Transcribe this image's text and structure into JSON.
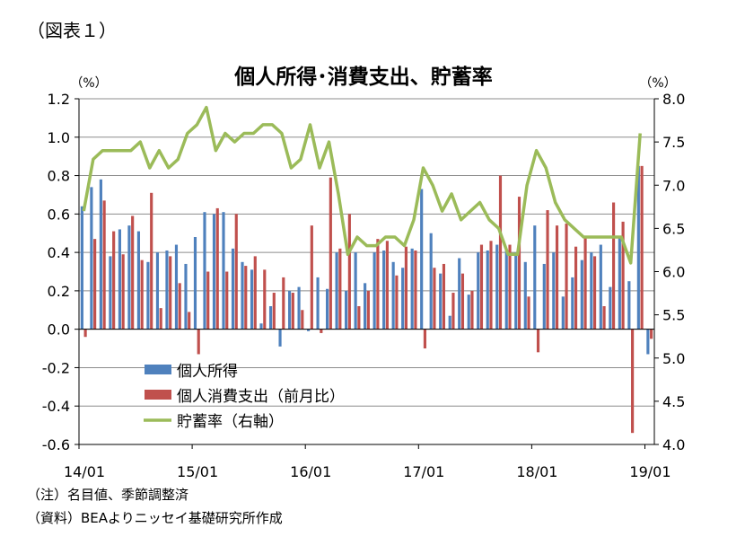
{
  "figure_label": "（図表１）",
  "notes": [
    "（注）名目値、季節調整済",
    "（資料）BEAよりニッセイ基礎研究所作成"
  ],
  "colors": {
    "income": "#4f81bd",
    "consumption": "#c0504d",
    "saving": "#9bbb59",
    "grid": "#8c8c8c"
  },
  "chart_data": {
    "type": "bar",
    "title": "個人所得･消費支出、貯蓄率",
    "y_left_label": "（%）",
    "y_right_label": "（%）",
    "y_left_lim": [
      -0.6,
      1.2
    ],
    "y_left_ticks": [
      "1.2",
      "1.0",
      "0.8",
      "0.6",
      "0.4",
      "0.2",
      "0.0",
      "-0.2",
      "-0.4",
      "-0.6"
    ],
    "y_right_lim": [
      4.0,
      8.0
    ],
    "y_right_ticks": [
      "8.0",
      "7.5",
      "7.0",
      "6.5",
      "6.0",
      "5.5",
      "5.0",
      "4.5",
      "4.0"
    ],
    "x_tick_labels": [
      "14/01",
      "15/01",
      "16/01",
      "17/01",
      "18/01",
      "19/01"
    ],
    "x_tick_indices": [
      0,
      12,
      24,
      36,
      48,
      60
    ],
    "x": [
      "14/01",
      "14/02",
      "14/03",
      "14/04",
      "14/05",
      "14/06",
      "14/07",
      "14/08",
      "14/09",
      "14/10",
      "14/11",
      "14/12",
      "15/01",
      "15/02",
      "15/03",
      "15/04",
      "15/05",
      "15/06",
      "15/07",
      "15/08",
      "15/09",
      "15/10",
      "15/11",
      "15/12",
      "16/01",
      "16/02",
      "16/03",
      "16/04",
      "16/05",
      "16/06",
      "16/07",
      "16/08",
      "16/09",
      "16/10",
      "16/11",
      "16/12",
      "17/01",
      "17/02",
      "17/03",
      "17/04",
      "17/05",
      "17/06",
      "17/07",
      "17/08",
      "17/09",
      "17/10",
      "17/11",
      "17/12",
      "18/01",
      "18/02",
      "18/03",
      "18/04",
      "18/05",
      "18/06",
      "18/07",
      "18/08",
      "18/09",
      "18/10",
      "18/11",
      "18/12",
      "19/01"
    ],
    "grid": true,
    "legend_position": "lower-left",
    "series": [
      {
        "name": "個人所得",
        "axis": "left",
        "type": "bar",
        "values": [
          0.64,
          0.74,
          0.78,
          0.38,
          0.52,
          0.54,
          0.51,
          0.35,
          0.4,
          0.41,
          0.44,
          0.34,
          0.48,
          0.61,
          0.6,
          0.61,
          0.42,
          0.35,
          0.31,
          0.03,
          0.12,
          -0.09,
          0.2,
          0.22,
          -0.01,
          0.27,
          0.21,
          0.4,
          0.2,
          0.4,
          0.24,
          0.4,
          0.41,
          0.35,
          0.32,
          0.42,
          0.73,
          0.5,
          0.29,
          0.07,
          0.37,
          0.18,
          0.4,
          0.41,
          0.44,
          0.41,
          0.4,
          0.35,
          0.54,
          0.34,
          0.4,
          0.17,
          0.27,
          0.36,
          0.4,
          0.44,
          0.22,
          0.48,
          0.25,
          0.85,
          -0.13
        ]
      },
      {
        "name": "個人消費支出（前月比）",
        "axis": "left",
        "type": "bar",
        "values": [
          -0.04,
          0.47,
          0.67,
          0.51,
          0.39,
          0.59,
          0.36,
          0.71,
          0.11,
          0.38,
          0.24,
          0.09,
          -0.13,
          0.3,
          0.63,
          0.3,
          0.6,
          0.33,
          0.38,
          0.31,
          0.19,
          0.27,
          0.19,
          0.1,
          0.54,
          -0.02,
          0.79,
          0.42,
          0.6,
          0.12,
          0.2,
          0.47,
          0.46,
          0.28,
          0.43,
          0.41,
          -0.1,
          0.32,
          0.34,
          0.19,
          0.29,
          0.2,
          0.44,
          0.46,
          0.8,
          0.44,
          0.69,
          0.17,
          -0.12,
          0.62,
          0.54,
          0.55,
          0.43,
          0.48,
          0.38,
          0.12,
          0.66,
          0.56,
          -0.54,
          0.85,
          -0.05
        ]
      },
      {
        "name": "貯蓄率（右軸）",
        "axis": "right",
        "type": "line",
        "values": [
          6.7,
          7.3,
          7.4,
          7.4,
          7.4,
          7.4,
          7.5,
          7.2,
          7.4,
          7.2,
          7.3,
          7.6,
          7.7,
          7.9,
          7.4,
          7.6,
          7.5,
          7.6,
          7.6,
          7.7,
          7.7,
          7.6,
          7.2,
          7.3,
          7.7,
          7.2,
          7.5,
          6.9,
          6.2,
          6.4,
          6.3,
          6.3,
          6.4,
          6.4,
          6.3,
          6.6,
          7.2,
          7.0,
          6.7,
          6.9,
          6.6,
          6.7,
          6.8,
          6.6,
          6.5,
          6.2,
          6.2,
          7.0,
          7.4,
          7.2,
          6.8,
          6.6,
          6.5,
          6.4,
          6.4,
          6.4,
          6.4,
          6.4,
          6.1,
          7.6,
          null
        ]
      }
    ]
  }
}
